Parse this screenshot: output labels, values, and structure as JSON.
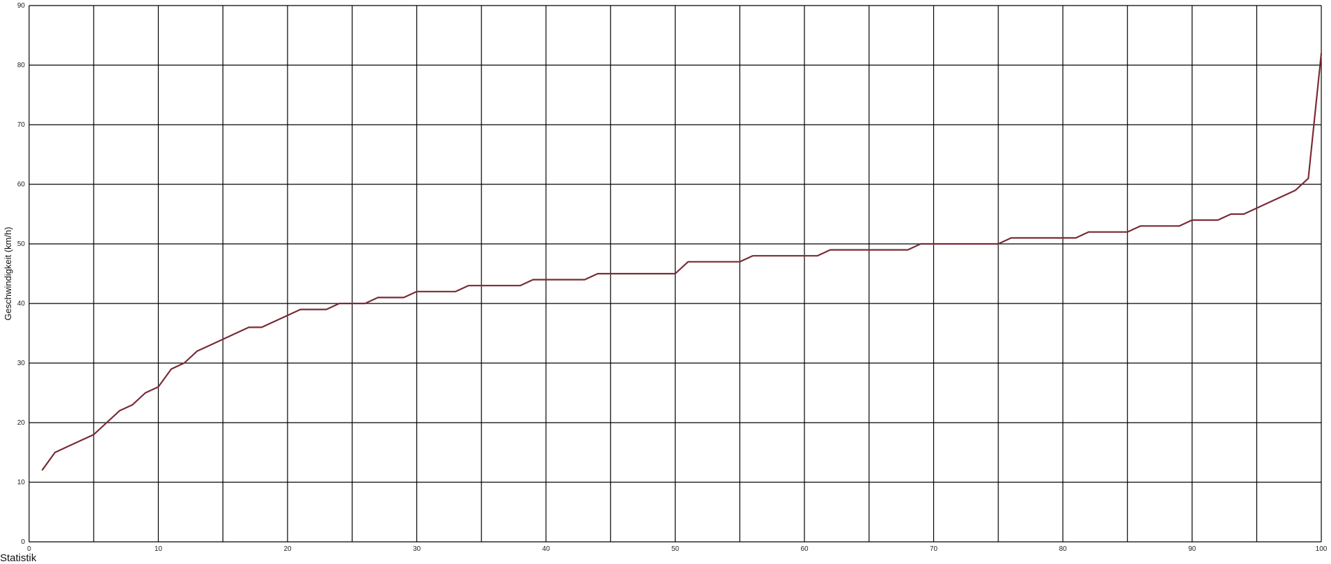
{
  "chart_data": {
    "type": "line",
    "title": "",
    "xlabel": "",
    "ylabel": "Geschwindigkeit (km/h)",
    "xlim": [
      0,
      100
    ],
    "ylim": [
      0,
      90
    ],
    "grid": true,
    "x_tick_labels": [
      "0",
      "10",
      "20",
      "30",
      "40",
      "50",
      "60",
      "70",
      "80",
      "90",
      "100"
    ],
    "y_tick_labels": [
      "0",
      "10",
      "20",
      "30",
      "40",
      "50",
      "60",
      "70",
      "80",
      "90"
    ],
    "line_color": "#7a2a35",
    "series": [
      {
        "x": [
          1,
          2,
          3,
          4,
          5,
          6,
          7,
          8,
          9,
          10,
          11,
          12,
          13,
          14,
          15,
          16,
          17,
          18,
          19,
          20,
          21,
          22,
          23,
          24,
          25,
          26,
          27,
          28,
          29,
          30,
          31,
          32,
          33,
          34,
          35,
          36,
          37,
          38,
          39,
          40,
          41,
          42,
          43,
          44,
          45,
          46,
          47,
          48,
          49,
          50,
          51,
          52,
          53,
          54,
          55,
          56,
          57,
          58,
          59,
          60,
          61,
          62,
          63,
          64,
          65,
          66,
          67,
          68,
          69,
          70,
          71,
          72,
          73,
          74,
          75,
          76,
          77,
          78,
          79,
          80,
          81,
          82,
          83,
          84,
          85,
          86,
          87,
          88,
          89,
          90,
          91,
          92,
          93,
          94,
          95,
          96,
          97,
          98,
          99,
          100
        ],
        "values": [
          12,
          15,
          16,
          17,
          18,
          20,
          22,
          23,
          25,
          26,
          29,
          30,
          32,
          33,
          34,
          35,
          36,
          36,
          37,
          38,
          39,
          39,
          39,
          40,
          40,
          40,
          41,
          41,
          41,
          42,
          42,
          42,
          42,
          43,
          43,
          43,
          43,
          43,
          44,
          44,
          44,
          44,
          44,
          45,
          45,
          45,
          45,
          45,
          45,
          45,
          47,
          47,
          47,
          47,
          47,
          48,
          48,
          48,
          48,
          48,
          48,
          49,
          49,
          49,
          49,
          49,
          49,
          49,
          50,
          50,
          50,
          50,
          50,
          50,
          50,
          51,
          51,
          51,
          51,
          51,
          51,
          52,
          52,
          52,
          52,
          53,
          53,
          53,
          53,
          54,
          54,
          54,
          55,
          55,
          56,
          57,
          58,
          59,
          61,
          82
        ]
      }
    ]
  },
  "footer": {
    "text": "Statistik"
  }
}
